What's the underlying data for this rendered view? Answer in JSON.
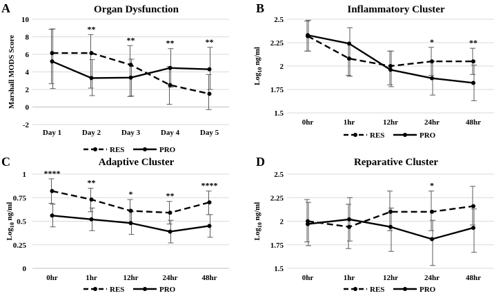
{
  "figure": {
    "legend": {
      "series_a": "RES",
      "series_b": "PRO"
    }
  },
  "chart_data": [
    {
      "panel_letter": "A",
      "type": "line",
      "title": "Organ Dysfunction",
      "ylabel": "Marshall MODS Score",
      "ylabel_sub": "",
      "ylabel_rest": "",
      "xlabel": "",
      "categories": [
        "Day 1",
        "Day 2",
        "Day 3",
        "Day 4",
        "Day 5"
      ],
      "ylim": [
        -2,
        10
      ],
      "yticks": [
        -2,
        0,
        2,
        4,
        6,
        8,
        10
      ],
      "ytick_labels": [
        "-2",
        "0",
        "2",
        "4",
        "6",
        "8",
        "10"
      ],
      "grid": true,
      "series": [
        {
          "name": "RES",
          "style": "dashed",
          "values": [
            6.15,
            6.15,
            4.8,
            2.5,
            1.5
          ],
          "err_low": [
            3.5,
            4.0,
            3.6,
            2.2,
            1.8
          ],
          "err_high": [
            2.7,
            2.1,
            2.2,
            2.1,
            2.2
          ]
        },
        {
          "name": "PRO",
          "style": "solid",
          "values": [
            5.2,
            3.3,
            3.35,
            4.45,
            4.3
          ],
          "err_low": [
            3.1,
            2.0,
            2.1,
            2.2,
            2.3
          ],
          "err_high": [
            3.7,
            2.1,
            2.1,
            2.2,
            2.5
          ]
        }
      ],
      "annotations": [
        "",
        "**",
        "**",
        "**",
        "**"
      ]
    },
    {
      "panel_letter": "B",
      "type": "line",
      "title": "Inflammatory Cluster",
      "ylabel": "",
      "ylabel_sub": "",
      "ylabel_rest": "",
      "ylabel_parts": [
        "Log",
        "10",
        " ng/ml"
      ],
      "xlabel": "",
      "categories": [
        "0hr",
        "1hr",
        "12hr",
        "24hr",
        "48hr"
      ],
      "ylim": [
        1.5,
        2.5
      ],
      "yticks": [
        1.5,
        1.75,
        2,
        2.25,
        2.5
      ],
      "ytick_labels": [
        "1.5",
        "1.75",
        "2",
        "2.25",
        "2.5"
      ],
      "grid": true,
      "series": [
        {
          "name": "RES",
          "style": "dashed",
          "values": [
            2.32,
            2.08,
            2.0,
            2.05,
            2.05
          ],
          "err_low": [
            0.16,
            0.18,
            0.2,
            0.15,
            0.14
          ],
          "err_high": [
            0.16,
            0.17,
            0.16,
            0.15,
            0.14
          ]
        },
        {
          "name": "PRO",
          "style": "solid",
          "values": [
            2.33,
            2.24,
            1.96,
            1.87,
            1.82
          ],
          "err_low": [
            0.17,
            0.35,
            0.18,
            0.18,
            0.19
          ],
          "err_high": [
            0.16,
            0.17,
            0.2,
            0.18,
            0.19
          ]
        }
      ],
      "annotations": [
        "",
        "",
        "",
        "*",
        "**"
      ]
    },
    {
      "panel_letter": "C",
      "type": "line",
      "title": "Adaptive Cluster",
      "ylabel": "",
      "ylabel_sub": "",
      "ylabel_rest": "",
      "ylabel_parts": [
        "Log",
        "10",
        " ng/ml"
      ],
      "xlabel": "",
      "categories": [
        "0hr",
        "1hr",
        "12hr",
        "24hr",
        "48hr"
      ],
      "ylim": [
        0,
        1
      ],
      "yticks": [
        0,
        0.25,
        0.5,
        0.75,
        1
      ],
      "ytick_labels": [
        "0",
        "0.25",
        "0.5",
        "0.75",
        "1"
      ],
      "grid": true,
      "series": [
        {
          "name": "RES",
          "style": "dashed",
          "values": [
            0.82,
            0.73,
            0.61,
            0.59,
            0.7
          ],
          "err_low": [
            0.13,
            0.13,
            0.13,
            0.12,
            0.13
          ],
          "err_high": [
            0.13,
            0.12,
            0.12,
            0.12,
            0.12
          ]
        },
        {
          "name": "PRO",
          "style": "solid",
          "values": [
            0.56,
            0.52,
            0.48,
            0.39,
            0.45
          ],
          "err_low": [
            0.12,
            0.12,
            0.12,
            0.12,
            0.12
          ],
          "err_high": [
            0.12,
            0.12,
            0.12,
            0.12,
            0.12
          ]
        }
      ],
      "annotations": [
        "****",
        "**",
        "*",
        "**",
        "****"
      ]
    },
    {
      "panel_letter": "D",
      "type": "line",
      "title": "Reparative Cluster",
      "ylabel": "",
      "ylabel_sub": "",
      "ylabel_rest": "",
      "ylabel_parts": [
        "Log",
        "10",
        " ng/ml"
      ],
      "xlabel": "",
      "categories": [
        "0hr",
        "1hr",
        "12hr",
        "24hr",
        "48hr"
      ],
      "ylim": [
        1.5,
        2.5
      ],
      "yticks": [
        1.5,
        1.75,
        2,
        2.25,
        2.5
      ],
      "ytick_labels": [
        "1.5",
        "1.75",
        "2",
        "2.25",
        "2.5"
      ],
      "grid": true,
      "series": [
        {
          "name": "RES",
          "style": "dashed",
          "values": [
            2.0,
            1.94,
            2.1,
            2.1,
            2.16
          ],
          "err_low": [
            0.22,
            0.23,
            0.2,
            0.2,
            0.2
          ],
          "err_high": [
            0.23,
            0.24,
            0.22,
            0.22,
            0.21
          ]
        },
        {
          "name": "PRO",
          "style": "solid",
          "values": [
            1.97,
            2.02,
            1.94,
            1.81,
            1.93
          ],
          "err_low": [
            0.23,
            0.23,
            0.26,
            0.28,
            0.26
          ],
          "err_high": [
            0.23,
            0.23,
            0.2,
            0.2,
            0.2
          ]
        }
      ],
      "annotations": [
        "",
        "",
        "",
        "*",
        ""
      ]
    }
  ]
}
